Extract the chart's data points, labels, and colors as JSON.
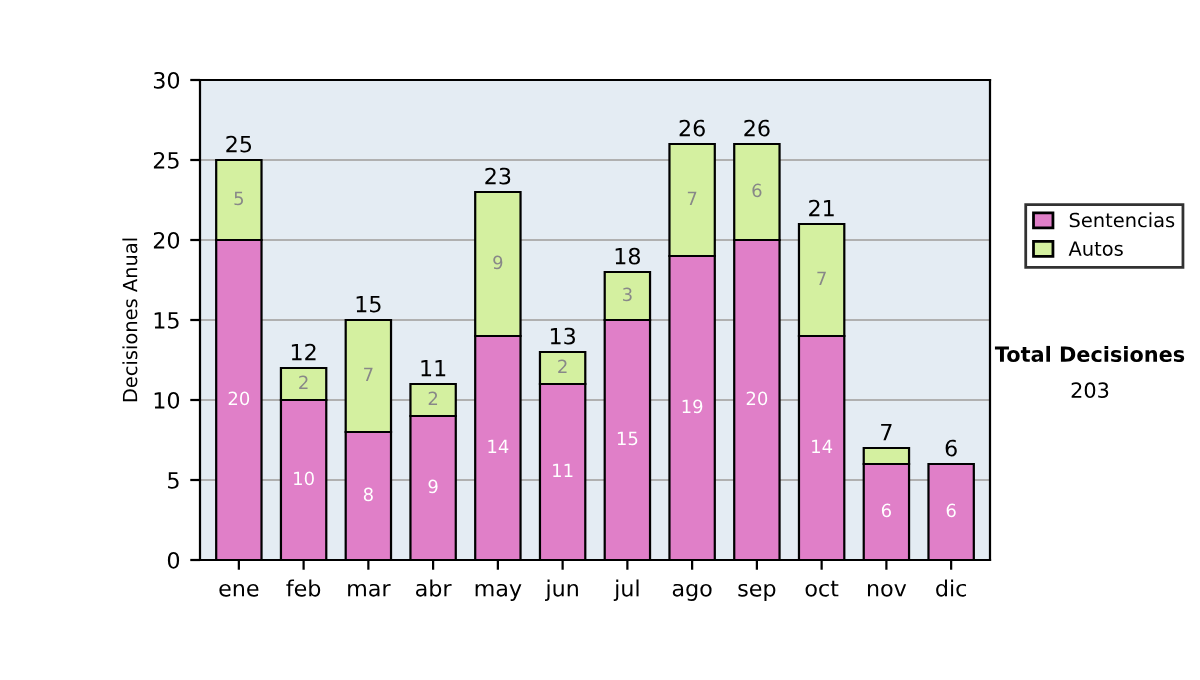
{
  "chart_data": {
    "type": "bar",
    "stacked": true,
    "ylabel": "Decisiones Anual",
    "categories": [
      "ene",
      "feb",
      "mar",
      "abr",
      "may",
      "jun",
      "jul",
      "ago",
      "sep",
      "oct",
      "nov",
      "dic"
    ],
    "series": [
      {
        "name": "Sentencias",
        "color": "#e07fc8",
        "values": [
          20,
          10,
          8,
          9,
          14,
          11,
          15,
          19,
          20,
          14,
          6,
          6
        ],
        "value_labels": [
          "20",
          "10",
          "8",
          "9",
          "14",
          "11",
          "15",
          "19",
          "20",
          "14",
          "6",
          "6"
        ]
      },
      {
        "name": "Autos",
        "color": "#d4f0a0",
        "values": [
          5,
          2,
          7,
          2,
          9,
          2,
          3,
          7,
          6,
          7,
          1,
          0
        ],
        "value_labels": [
          "5",
          "2",
          "7",
          "2",
          "9",
          "2",
          "3",
          "7",
          "6",
          "7",
          null,
          null
        ]
      }
    ],
    "totals": [
      "25",
      "12",
      "15",
      "11",
      "23",
      "13",
      "18",
      "26",
      "26",
      "21",
      "7",
      "6"
    ],
    "ylim": [
      0,
      30
    ],
    "yticks": [
      0,
      5,
      10,
      15,
      20,
      25,
      30
    ],
    "grid": "y",
    "legend": "right",
    "annotations": [
      "Total Decisiones",
      "203"
    ]
  }
}
